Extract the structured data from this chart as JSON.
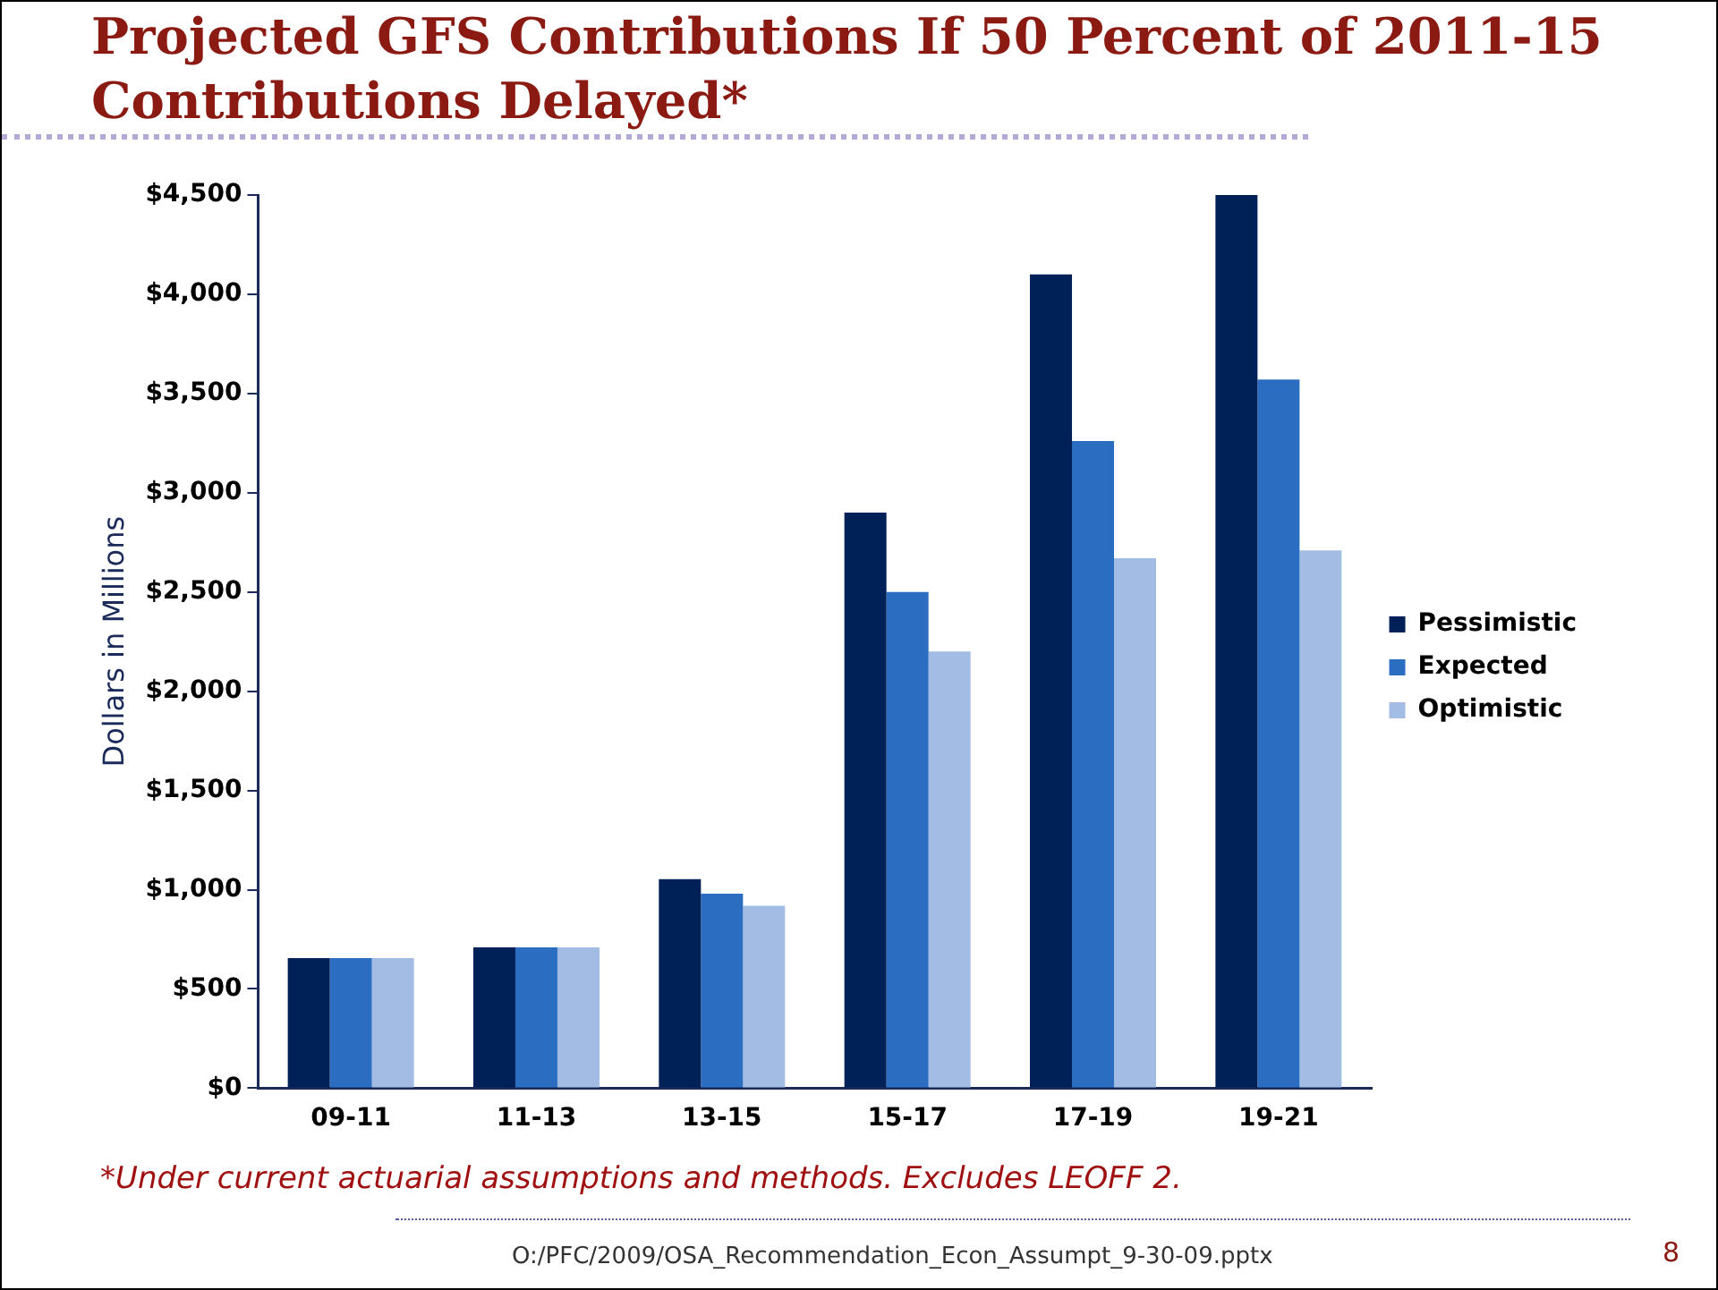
{
  "chart_data": {
    "type": "bar",
    "title": "Projected GFS Contributions If 50 Percent of 2011-15 Contributions Delayed*",
    "ylabel": "Dollars in Millions",
    "categories": [
      "09-11",
      "11-13",
      "13-15",
      "15-17",
      "17-19",
      "19-21"
    ],
    "series": [
      {
        "name": "Pessimistic",
        "color": "#002157",
        "values": [
          655,
          710,
          1053,
          2900,
          4100,
          4500
        ]
      },
      {
        "name": "Expected",
        "color": "#2b6dc1",
        "values": [
          655,
          710,
          980,
          2500,
          3260,
          3570
        ]
      },
      {
        "name": "Optimistic",
        "color": "#a3bce4",
        "values": [
          655,
          710,
          919,
          2200,
          2670,
          2710
        ]
      }
    ],
    "ylim": [
      0,
      4500
    ],
    "yticks": [
      {
        "value": 0,
        "label": "$0"
      },
      {
        "value": 500,
        "label": "$500"
      },
      {
        "value": 1000,
        "label": "$1,000"
      },
      {
        "value": 1500,
        "label": "$1,500"
      },
      {
        "value": 2000,
        "label": "$2,000"
      },
      {
        "value": 2500,
        "label": "$2,500"
      },
      {
        "value": 3000,
        "label": "$3,000"
      },
      {
        "value": 3500,
        "label": "$3,500"
      },
      {
        "value": 4000,
        "label": "$4,000"
      },
      {
        "value": 4500,
        "label": "$4,500"
      }
    ],
    "grid": false,
    "legend": "right",
    "annotations": [
      "*Under current actuarial assumptions and methods.  Excludes LEOFF 2.",
      "O:/PFC/2009/OSA_Recommendation_Econ_Assumpt_9-30-09.pptx",
      "8"
    ]
  }
}
